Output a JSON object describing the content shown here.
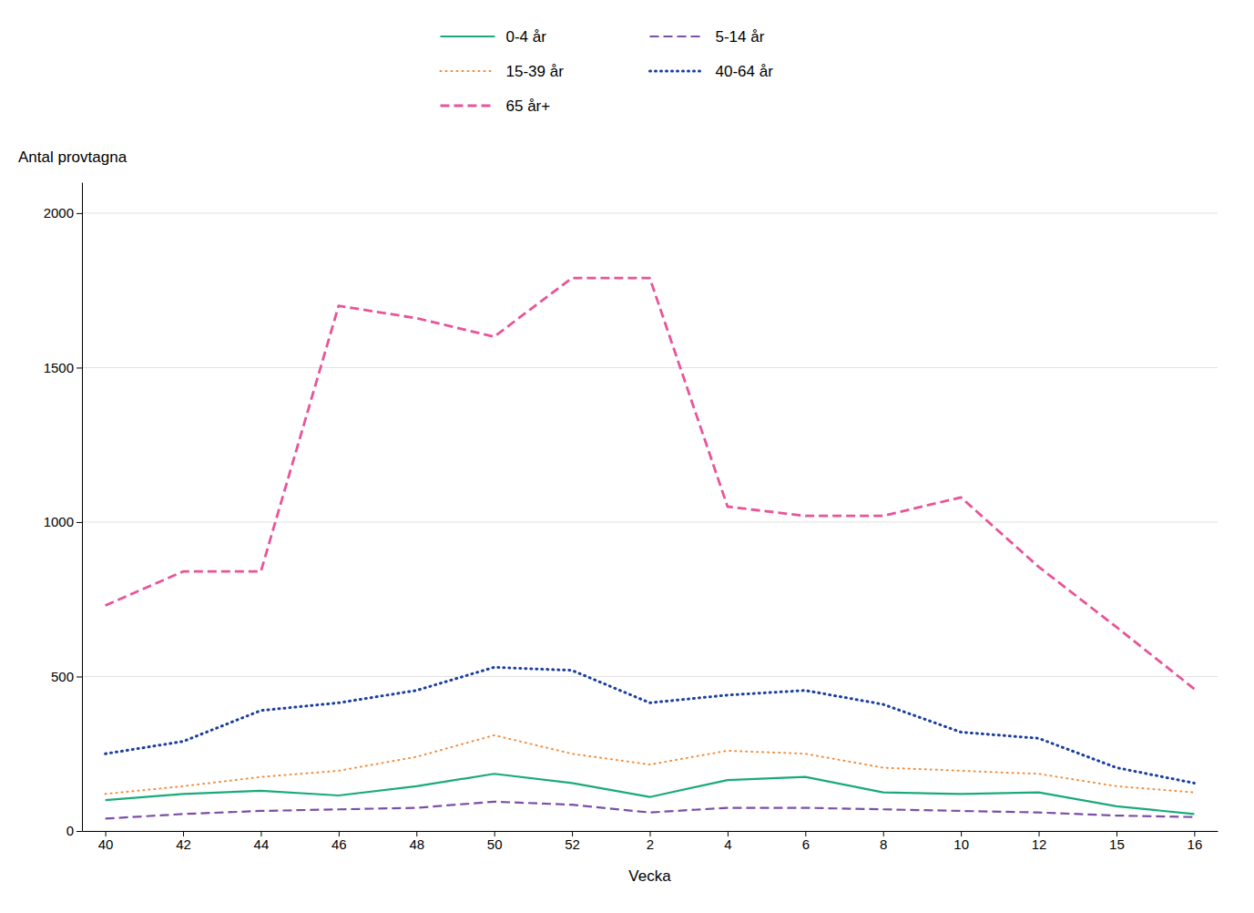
{
  "chart_data": {
    "type": "line",
    "x_label": "Vecka",
    "y_label": "Antal provtagna",
    "categories": [
      "40",
      "42",
      "44",
      "46",
      "48",
      "50",
      "52",
      "2",
      "4",
      "6",
      "8",
      "10",
      "12",
      "15",
      "16"
    ],
    "series": [
      {
        "name": "0-4 år",
        "color": "#1aaa7a",
        "line_style": "solid",
        "values": [
          100,
          120,
          130,
          115,
          145,
          185,
          155,
          110,
          165,
          175,
          125,
          120,
          125,
          80,
          55
        ]
      },
      {
        "name": "5-14 år",
        "color": "#7b4fa6",
        "line_style": "dashed",
        "values": [
          40,
          55,
          65,
          70,
          75,
          95,
          85,
          60,
          75,
          75,
          70,
          65,
          60,
          50,
          45
        ]
      },
      {
        "name": "15-39 år",
        "color": "#f28c3c",
        "line_style": "dotted",
        "values": [
          120,
          145,
          175,
          195,
          240,
          310,
          250,
          215,
          260,
          250,
          205,
          195,
          185,
          145,
          125
        ]
      },
      {
        "name": "40-64 år",
        "color": "#1a3f9e",
        "line_style": "dotted",
        "values": [
          250,
          290,
          390,
          415,
          455,
          530,
          520,
          415,
          440,
          455,
          410,
          320,
          300,
          205,
          155
        ]
      },
      {
        "name": "65 år+",
        "color": "#e8549a",
        "line_style": "dashed",
        "values": [
          730,
          840,
          840,
          1700,
          1660,
          1600,
          1790,
          1790,
          1050,
          1020,
          1020,
          1080,
          855,
          660,
          460
        ]
      }
    ],
    "ylim": [
      0,
      2100
    ],
    "yticks": [
      0,
      500,
      1000,
      1500,
      2000
    ],
    "grid": true,
    "legend": "top"
  }
}
